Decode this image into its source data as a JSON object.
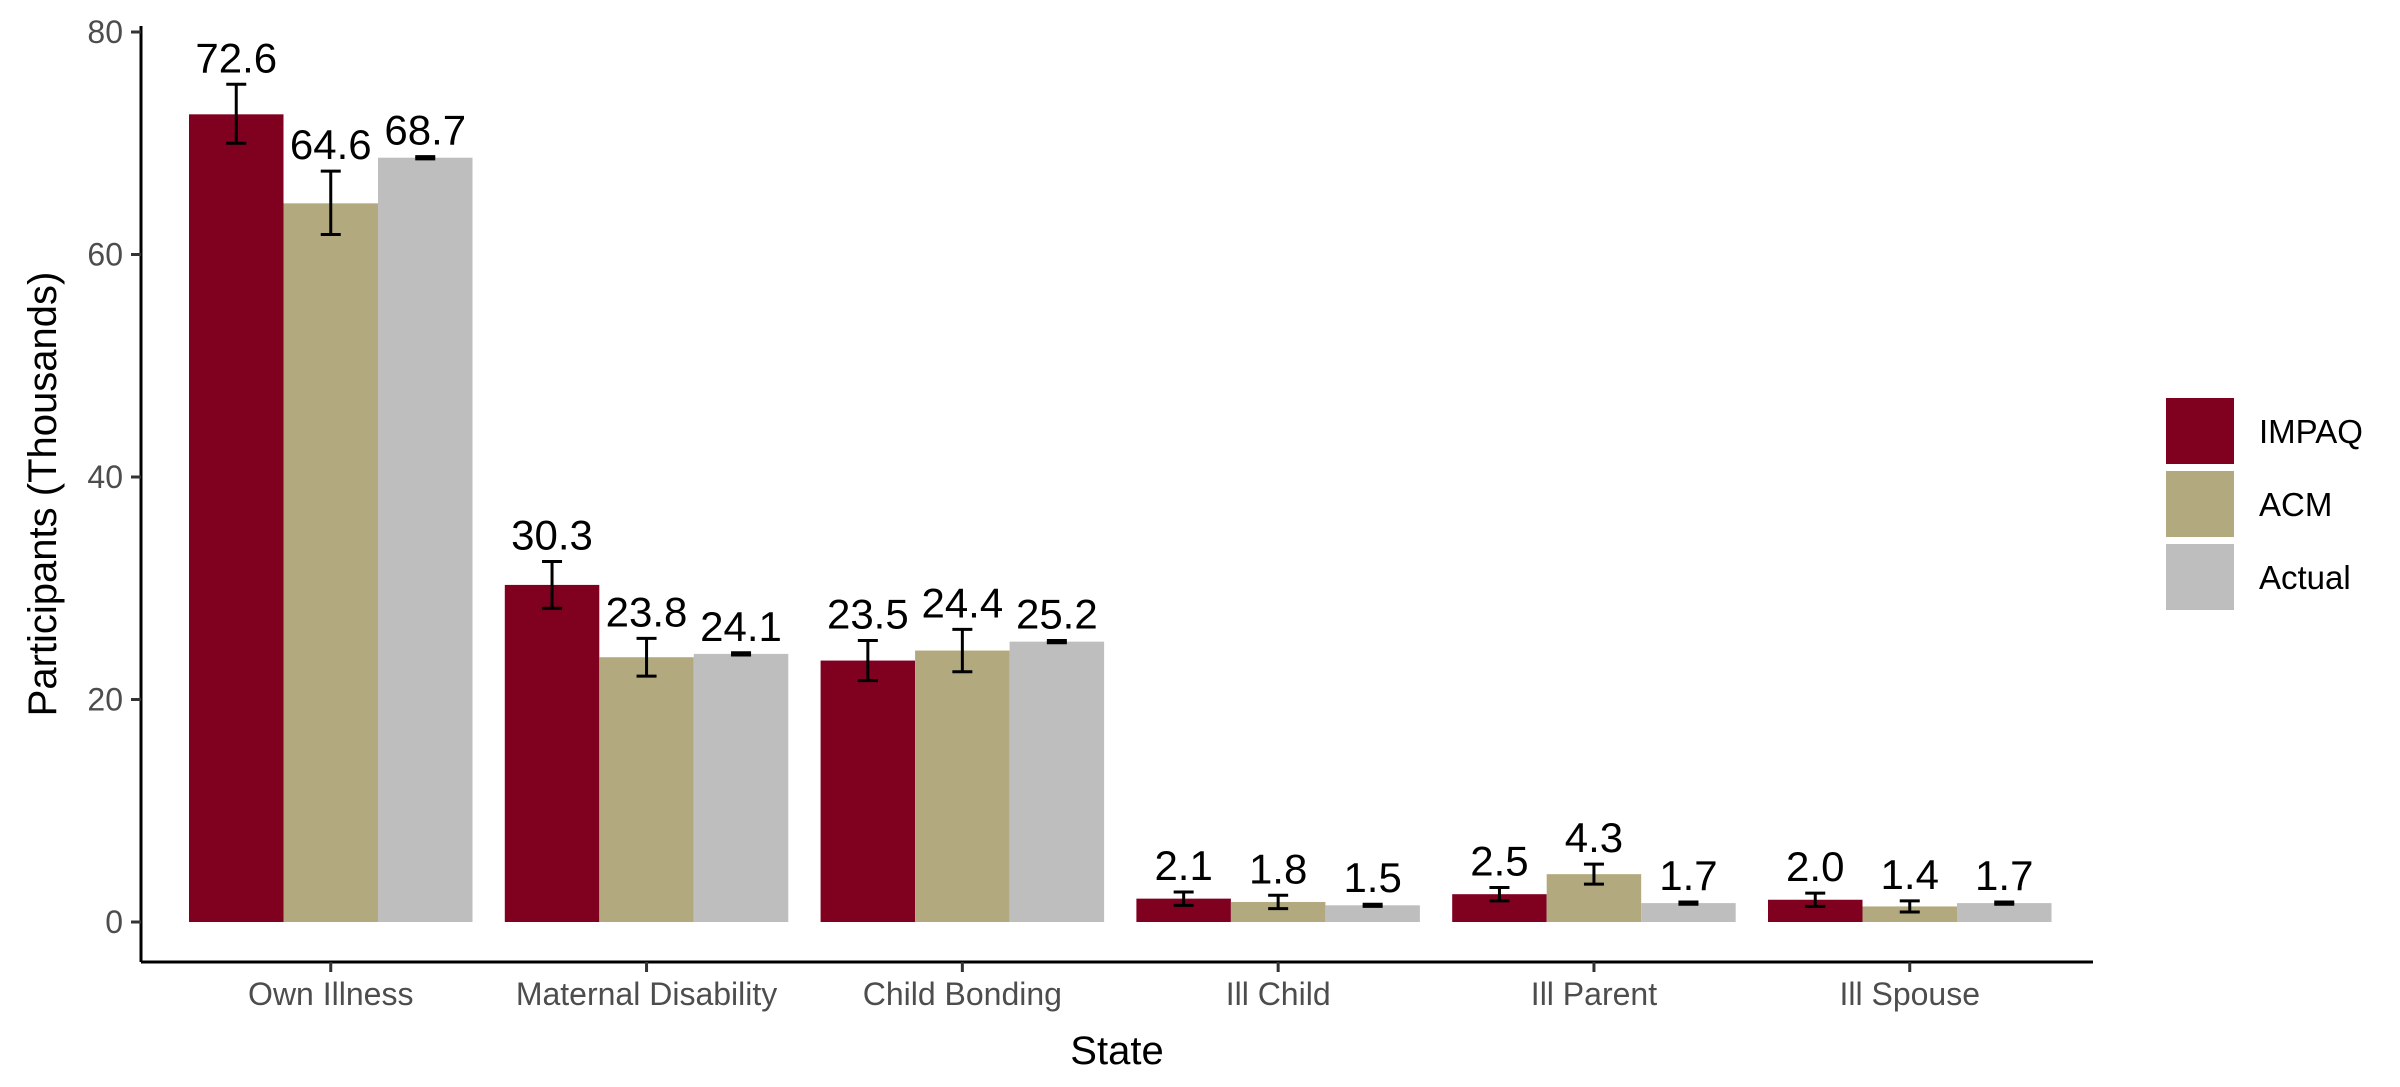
{
  "chart_data": {
    "type": "bar",
    "xlabel": "State",
    "ylabel": "Participants (Thousands)",
    "ylim": [
      0,
      80
    ],
    "yticks": [
      "0",
      "20",
      "40",
      "60",
      "80"
    ],
    "grid": false,
    "legend_position": "right",
    "categories": [
      "Own Illness",
      "Maternal Disability",
      "Child Bonding",
      "Ill Child",
      "Ill Parent",
      "Ill Spouse"
    ],
    "series": [
      {
        "name": "IMPAQ",
        "color": "#800020",
        "values": [
          72.6,
          30.3,
          23.5,
          2.1,
          2.5,
          2.0
        ],
        "labels": [
          "72.6",
          "30.3",
          "23.5",
          "2.1",
          "2.5",
          "2.0"
        ],
        "error_low": [
          70.0,
          28.2,
          21.7,
          1.5,
          1.9,
          1.4
        ],
        "error_high": [
          75.3,
          32.4,
          25.3,
          2.7,
          3.1,
          2.6
        ]
      },
      {
        "name": "ACM",
        "color": "#B3A97E",
        "values": [
          64.6,
          23.8,
          24.4,
          1.8,
          4.3,
          1.4
        ],
        "labels": [
          "64.6",
          "23.8",
          "24.4",
          "1.8",
          "4.3",
          "1.4"
        ],
        "error_low": [
          61.8,
          22.1,
          22.5,
          1.2,
          3.4,
          0.9
        ],
        "error_high": [
          67.5,
          25.5,
          26.3,
          2.4,
          5.2,
          1.9
        ]
      },
      {
        "name": "Actual",
        "color": "#BEBEBE",
        "values": [
          68.7,
          24.1,
          25.2,
          1.5,
          1.7,
          1.7
        ],
        "labels": [
          "68.7",
          "24.1",
          "25.2",
          "1.5",
          "1.7",
          "1.7"
        ],
        "error_low": [
          68.6,
          24.0,
          25.1,
          1.4,
          1.6,
          1.6
        ],
        "error_high": [
          68.8,
          24.2,
          25.3,
          1.6,
          1.8,
          1.8
        ]
      }
    ]
  }
}
